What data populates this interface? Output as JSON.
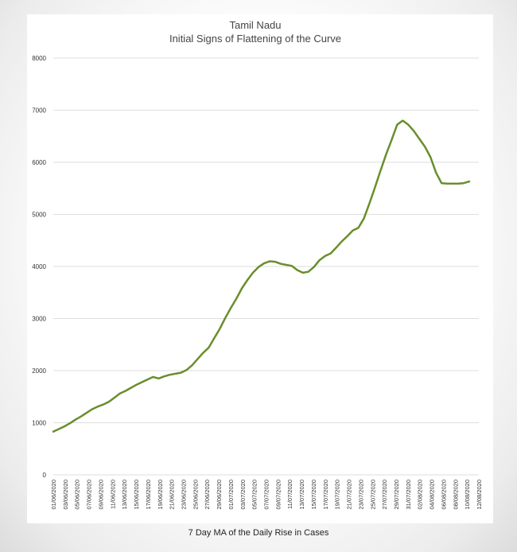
{
  "chart_data": {
    "type": "line",
    "title": "Tamil Nadu",
    "subtitle": "Initial Signs of Flattening of the Curve",
    "xlabel": "7 Day MA of the Daily Rise in Cases",
    "ylabel": "",
    "ylim": [
      0,
      8000
    ],
    "yticks": [
      "0",
      "1000",
      "2000",
      "3000",
      "4000",
      "5000",
      "6000",
      "7000",
      "8000"
    ],
    "grid": true,
    "line_color": "#6a8e2c",
    "xtick_labels": [
      "01/06/2020",
      "03/06/2020",
      "05/06/2020",
      "07/06/2020",
      "09/06/2020",
      "11/06/2020",
      "13/06/2020",
      "15/06/2020",
      "17/06/2020",
      "19/06/2020",
      "21/06/2020",
      "23/06/2020",
      "25/06/2020",
      "27/06/2020",
      "29/06/2020",
      "01/07/2020",
      "03/07/2020",
      "05/07/2020",
      "07/07/2020",
      "09/07/2020",
      "11/07/2020",
      "13/07/2020",
      "15/07/2020",
      "17/07/2020",
      "19/07/2020",
      "21/07/2020",
      "23/07/2020",
      "25/07/2020",
      "27/07/2020",
      "29/07/2020",
      "31/07/2020",
      "02/08/2020",
      "04/08/2020",
      "06/08/2020",
      "08/08/2020",
      "10/08/2020",
      "12/08/2020"
    ],
    "series": [
      {
        "name": "7 Day MA of the Daily Rise in Cases",
        "values": [
          830,
          880,
          930,
          990,
          1060,
          1120,
          1190,
          1260,
          1310,
          1350,
          1400,
          1480,
          1560,
          1610,
          1670,
          1730,
          1780,
          1830,
          1880,
          1850,
          1890,
          1920,
          1940,
          1960,
          2010,
          2100,
          2220,
          2340,
          2440,
          2620,
          2800,
          3010,
          3200,
          3380,
          3580,
          3740,
          3880,
          3990,
          4060,
          4100,
          4090,
          4050,
          4030,
          4010,
          3930,
          3880,
          3900,
          3990,
          4120,
          4200,
          4250,
          4360,
          4480,
          4580,
          4690,
          4740,
          4920,
          5210,
          5520,
          5840,
          6150,
          6430,
          6720,
          6800,
          6720,
          6600,
          6450,
          6300,
          6100,
          5800,
          5600,
          5590,
          5590,
          5590,
          5600,
          5630
        ]
      }
    ]
  }
}
